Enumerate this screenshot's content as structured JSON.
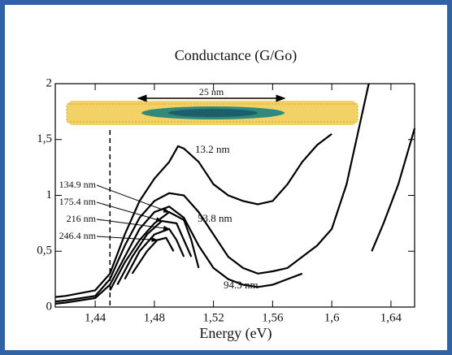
{
  "chart_data": {
    "type": "line",
    "title": "Conductance (G/Go)",
    "x_label": "Energy (eV)",
    "annotation": "25 nm",
    "reference_line_x": 1.45,
    "xlim": [
      1.413,
      1.656
    ],
    "ylim": [
      0,
      2
    ],
    "xticks": [
      {
        "value": 1.44,
        "label": "1,44"
      },
      {
        "value": 1.48,
        "label": "1,48"
      },
      {
        "value": 1.52,
        "label": "1,52"
      },
      {
        "value": 1.56,
        "label": "1,56"
      },
      {
        "value": 1.6,
        "label": "1,6"
      },
      {
        "value": 1.64,
        "label": "1,64"
      }
    ],
    "yticks": [
      0,
      {
        "value": 0.5,
        "label": "0,5"
      },
      1,
      {
        "value": 1.5,
        "label": "1,5"
      },
      2
    ],
    "series": [
      {
        "name": "13.2 nm",
        "color": "#000000",
        "x": [
          1.413,
          1.42,
          1.44,
          1.45,
          1.46,
          1.47,
          1.48,
          1.49,
          1.496,
          1.5,
          1.51,
          1.52,
          1.53,
          1.54,
          1.55,
          1.56,
          1.57,
          1.58,
          1.59,
          1.6
        ],
        "values": [
          0.09,
          0.1,
          0.15,
          0.3,
          0.65,
          0.95,
          1.15,
          1.3,
          1.44,
          1.42,
          1.3,
          1.1,
          1.0,
          0.95,
          0.92,
          0.95,
          1.1,
          1.3,
          1.45,
          1.55
        ]
      },
      {
        "name": "53.8 nm",
        "color": "#000000",
        "x": [
          1.413,
          1.42,
          1.44,
          1.45,
          1.46,
          1.47,
          1.48,
          1.49,
          1.5,
          1.51,
          1.52,
          1.53,
          1.54,
          1.55,
          1.56,
          1.57,
          1.58,
          1.59,
          1.6,
          1.61,
          1.62,
          1.625
        ],
        "values": [
          0.05,
          0.06,
          0.1,
          0.25,
          0.55,
          0.8,
          0.95,
          1.02,
          1.0,
          0.85,
          0.65,
          0.45,
          0.35,
          0.3,
          0.32,
          0.35,
          0.45,
          0.55,
          0.7,
          1.1,
          1.7,
          2.0
        ]
      },
      {
        "name": "94.3 nm",
        "color": "#000000",
        "x": [
          1.413,
          1.42,
          1.44,
          1.45,
          1.46,
          1.47,
          1.48,
          1.49,
          1.5,
          1.51,
          1.52,
          1.53,
          1.54,
          1.55,
          1.56,
          1.57,
          1.58,
          null,
          1.627,
          1.635,
          1.645,
          1.656
        ],
        "values": [
          0.03,
          0.04,
          0.08,
          0.2,
          0.45,
          0.7,
          0.85,
          0.9,
          0.8,
          0.55,
          0.35,
          0.25,
          0.2,
          0.18,
          0.2,
          0.25,
          0.3,
          null,
          0.5,
          0.75,
          1.1,
          1.6
        ]
      },
      {
        "name": "134.9 nm",
        "color": "#000000",
        "x": [
          1.45,
          1.46,
          1.47,
          1.48,
          1.49,
          1.5,
          1.505,
          1.51
        ],
        "values": [
          0.15,
          0.4,
          0.6,
          0.75,
          0.85,
          0.78,
          0.6,
          0.35
        ]
      },
      {
        "name": "175.4 nm",
        "color": "#000000",
        "x": [
          1.455,
          1.465,
          1.475,
          1.485,
          1.495,
          1.5,
          1.505
        ],
        "values": [
          0.2,
          0.45,
          0.65,
          0.77,
          0.75,
          0.6,
          0.45
        ]
      },
      {
        "name": "216 nm",
        "color": "#000000",
        "x": [
          1.46,
          1.47,
          1.48,
          1.49,
          1.495,
          1.5
        ],
        "values": [
          0.25,
          0.5,
          0.65,
          0.7,
          0.6,
          0.45
        ]
      },
      {
        "name": "246.4 nm",
        "color": "#000000",
        "x": [
          1.465,
          1.475,
          1.482,
          1.488,
          1.493
        ],
        "values": [
          0.3,
          0.5,
          0.6,
          0.62,
          0.5
        ]
      }
    ]
  }
}
